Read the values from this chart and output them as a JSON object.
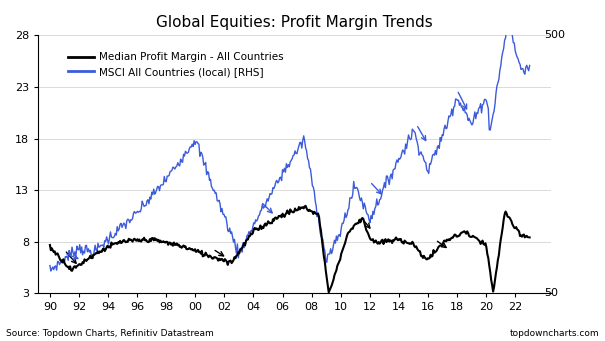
{
  "title": "Global Equities: Profit Margin Trends",
  "xlabel_ticks": [
    "90",
    "92",
    "94",
    "96",
    "98",
    "00",
    "02",
    "04",
    "06",
    "08",
    "10",
    "12",
    "14",
    "16",
    "18",
    "20",
    "22"
  ],
  "left_yticks": [
    3,
    8,
    13,
    18,
    23,
    28
  ],
  "left_color": "#000000",
  "right_color": "#3b5bdb",
  "source_text": "Source: Topdown Charts, Refinitiv Datastream",
  "website_text": "topdowncharts.com",
  "legend_line1": "Median Profit Margin - All Countries",
  "legend_line2": "MSCI All Countries (local) [RHS]",
  "background_color": "#ffffff",
  "rhs_label_500": "500",
  "rhs_label_50": "50"
}
